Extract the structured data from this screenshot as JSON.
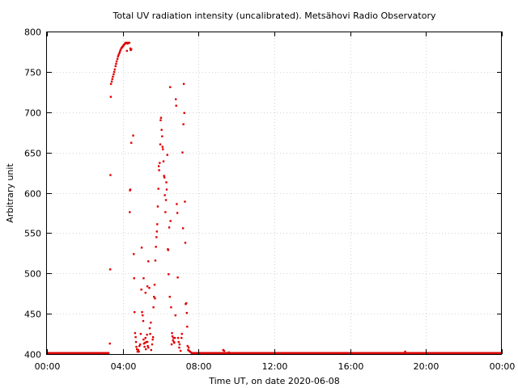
{
  "chart_data": {
    "type": "scatter",
    "title": "Total UV radiation intensity (uncalibrated). Metsähovi Radio Observatory",
    "xlabel": "Time UT, on date 2020-06-08",
    "ylabel": "Arbitrary unit",
    "x_unit": "hours UT",
    "xlim": [
      0,
      24
    ],
    "ylim": [
      400,
      800
    ],
    "x_ticks": [
      {
        "value": 0,
        "label": "00:00"
      },
      {
        "value": 4,
        "label": "04:00"
      },
      {
        "value": 8,
        "label": "08:00"
      },
      {
        "value": 12,
        "label": "12:00"
      },
      {
        "value": 16,
        "label": "16:00"
      },
      {
        "value": 20,
        "label": "20:00"
      },
      {
        "value": 24,
        "label": "00:00"
      }
    ],
    "y_ticks": [
      {
        "value": 400,
        "label": "400"
      },
      {
        "value": 450,
        "label": "450"
      },
      {
        "value": 500,
        "label": "500"
      },
      {
        "value": 550,
        "label": "550"
      },
      {
        "value": 600,
        "label": "600"
      },
      {
        "value": 650,
        "label": "650"
      },
      {
        "value": 700,
        "label": "700"
      },
      {
        "value": 750,
        "label": "750"
      },
      {
        "value": 800,
        "label": "800"
      }
    ],
    "grid": true,
    "marker_color": "#e00000",
    "baseline_value": 401,
    "baseline_ranges": [
      [
        0,
        3.3
      ],
      [
        7.6,
        24
      ]
    ],
    "series": [
      {
        "points": [
          [
            3.32,
            413
          ],
          [
            3.34,
            505
          ],
          [
            3.35,
            622
          ],
          [
            3.37,
            719
          ],
          [
            3.38,
            735
          ],
          [
            3.42,
            738
          ],
          [
            3.45,
            741
          ],
          [
            3.48,
            744
          ],
          [
            3.52,
            747
          ],
          [
            3.55,
            750
          ],
          [
            3.58,
            753
          ],
          [
            3.62,
            757
          ],
          [
            3.65,
            760
          ],
          [
            3.68,
            763
          ],
          [
            3.72,
            766
          ],
          [
            3.75,
            769
          ],
          [
            3.78,
            771
          ],
          [
            3.82,
            773
          ],
          [
            3.85,
            775
          ],
          [
            3.88,
            777
          ],
          [
            3.92,
            779
          ],
          [
            3.95,
            780
          ],
          [
            3.98,
            781
          ],
          [
            4.02,
            782
          ],
          [
            4.05,
            783
          ],
          [
            4.08,
            784
          ],
          [
            4.12,
            785
          ],
          [
            4.15,
            786
          ],
          [
            4.2,
            786
          ],
          [
            4.25,
            785
          ],
          [
            4.3,
            786
          ],
          [
            4.35,
            786
          ],
          [
            4.22,
            776
          ],
          [
            4.4,
            779
          ],
          [
            4.42,
            777
          ],
          [
            4.45,
            778
          ],
          [
            4.38,
            603
          ],
          [
            4.4,
            604
          ],
          [
            4.37,
            576
          ],
          [
            4.45,
            662
          ],
          [
            4.55,
            671
          ],
          [
            4.58,
            524
          ],
          [
            4.6,
            494
          ],
          [
            4.62,
            452
          ],
          [
            4.65,
            426
          ],
          [
            4.68,
            421
          ],
          [
            4.7,
            415
          ],
          [
            4.72,
            409
          ],
          [
            4.75,
            406
          ],
          [
            4.78,
            403
          ],
          [
            4.82,
            405
          ],
          [
            4.85,
            403
          ],
          [
            4.88,
            410
          ],
          [
            4.92,
            412
          ],
          [
            4.95,
            425
          ],
          [
            4.98,
            480
          ],
          [
            5.0,
            532
          ],
          [
            5.02,
            452
          ],
          [
            5.05,
            448
          ],
          [
            5.08,
            441
          ],
          [
            5.1,
            418
          ],
          [
            5.12,
            413
          ],
          [
            5.15,
            409
          ],
          [
            5.18,
            414
          ],
          [
            5.2,
            420
          ],
          [
            5.22,
            406
          ],
          [
            5.25,
            415
          ],
          [
            5.28,
            424
          ],
          [
            5.3,
            415
          ],
          [
            5.32,
            410
          ],
          [
            5.35,
            408
          ],
          [
            5.1,
            494
          ],
          [
            5.2,
            476
          ],
          [
            5.3,
            484
          ],
          [
            5.35,
            515
          ],
          [
            5.4,
            482
          ],
          [
            5.42,
            432
          ],
          [
            5.45,
            425
          ],
          [
            5.48,
            439
          ],
          [
            5.5,
            405
          ],
          [
            5.55,
            412
          ],
          [
            5.58,
            418
          ],
          [
            5.6,
            421
          ],
          [
            5.62,
            458
          ],
          [
            5.65,
            471
          ],
          [
            5.68,
            486
          ],
          [
            5.7,
            469
          ],
          [
            5.72,
            516
          ],
          [
            5.75,
            533
          ],
          [
            5.78,
            545
          ],
          [
            5.8,
            552
          ],
          [
            5.82,
            561
          ],
          [
            5.85,
            583
          ],
          [
            5.88,
            605
          ],
          [
            5.9,
            633
          ],
          [
            5.92,
            628
          ],
          [
            5.95,
            637
          ],
          [
            5.98,
            660
          ],
          [
            6.0,
            690
          ],
          [
            6.02,
            693
          ],
          [
            6.05,
            678
          ],
          [
            6.08,
            670
          ],
          [
            6.1,
            657
          ],
          [
            6.12,
            654
          ],
          [
            6.15,
            639
          ],
          [
            6.18,
            621
          ],
          [
            6.2,
            619
          ],
          [
            6.22,
            597
          ],
          [
            6.25,
            576
          ],
          [
            6.28,
            591
          ],
          [
            6.3,
            613
          ],
          [
            6.32,
            604
          ],
          [
            6.35,
            647
          ],
          [
            6.38,
            530
          ],
          [
            6.4,
            529
          ],
          [
            6.42,
            499
          ],
          [
            6.45,
            557
          ],
          [
            6.48,
            471
          ],
          [
            6.5,
            731
          ],
          [
            6.52,
            565
          ],
          [
            6.55,
            458
          ],
          [
            6.58,
            412
          ],
          [
            6.6,
            426
          ],
          [
            6.62,
            422
          ],
          [
            6.65,
            417
          ],
          [
            6.68,
            420
          ],
          [
            6.7,
            415
          ],
          [
            6.72,
            414
          ],
          [
            6.75,
            420
          ],
          [
            6.78,
            448
          ],
          [
            6.8,
            716
          ],
          [
            6.82,
            708
          ],
          [
            6.85,
            586
          ],
          [
            6.88,
            575
          ],
          [
            6.9,
            495
          ],
          [
            6.92,
            420
          ],
          [
            6.95,
            415
          ],
          [
            6.98,
            408
          ],
          [
            7.0,
            412
          ],
          [
            7.05,
            404
          ],
          [
            7.1,
            420
          ],
          [
            7.12,
            425
          ],
          [
            7.15,
            650
          ],
          [
            7.18,
            556
          ],
          [
            7.2,
            685
          ],
          [
            7.22,
            735
          ],
          [
            7.25,
            699
          ],
          [
            7.28,
            589
          ],
          [
            7.3,
            538
          ],
          [
            7.32,
            462
          ],
          [
            7.35,
            463
          ],
          [
            7.38,
            451
          ],
          [
            7.4,
            434
          ],
          [
            7.42,
            410
          ],
          [
            7.45,
            405
          ],
          [
            7.48,
            408
          ],
          [
            7.5,
            404
          ],
          [
            7.55,
            403
          ],
          [
            7.6,
            402
          ],
          [
            9.3,
            405
          ],
          [
            9.35,
            404
          ],
          [
            9.6,
            402
          ],
          [
            18.9,
            403
          ]
        ]
      }
    ]
  }
}
